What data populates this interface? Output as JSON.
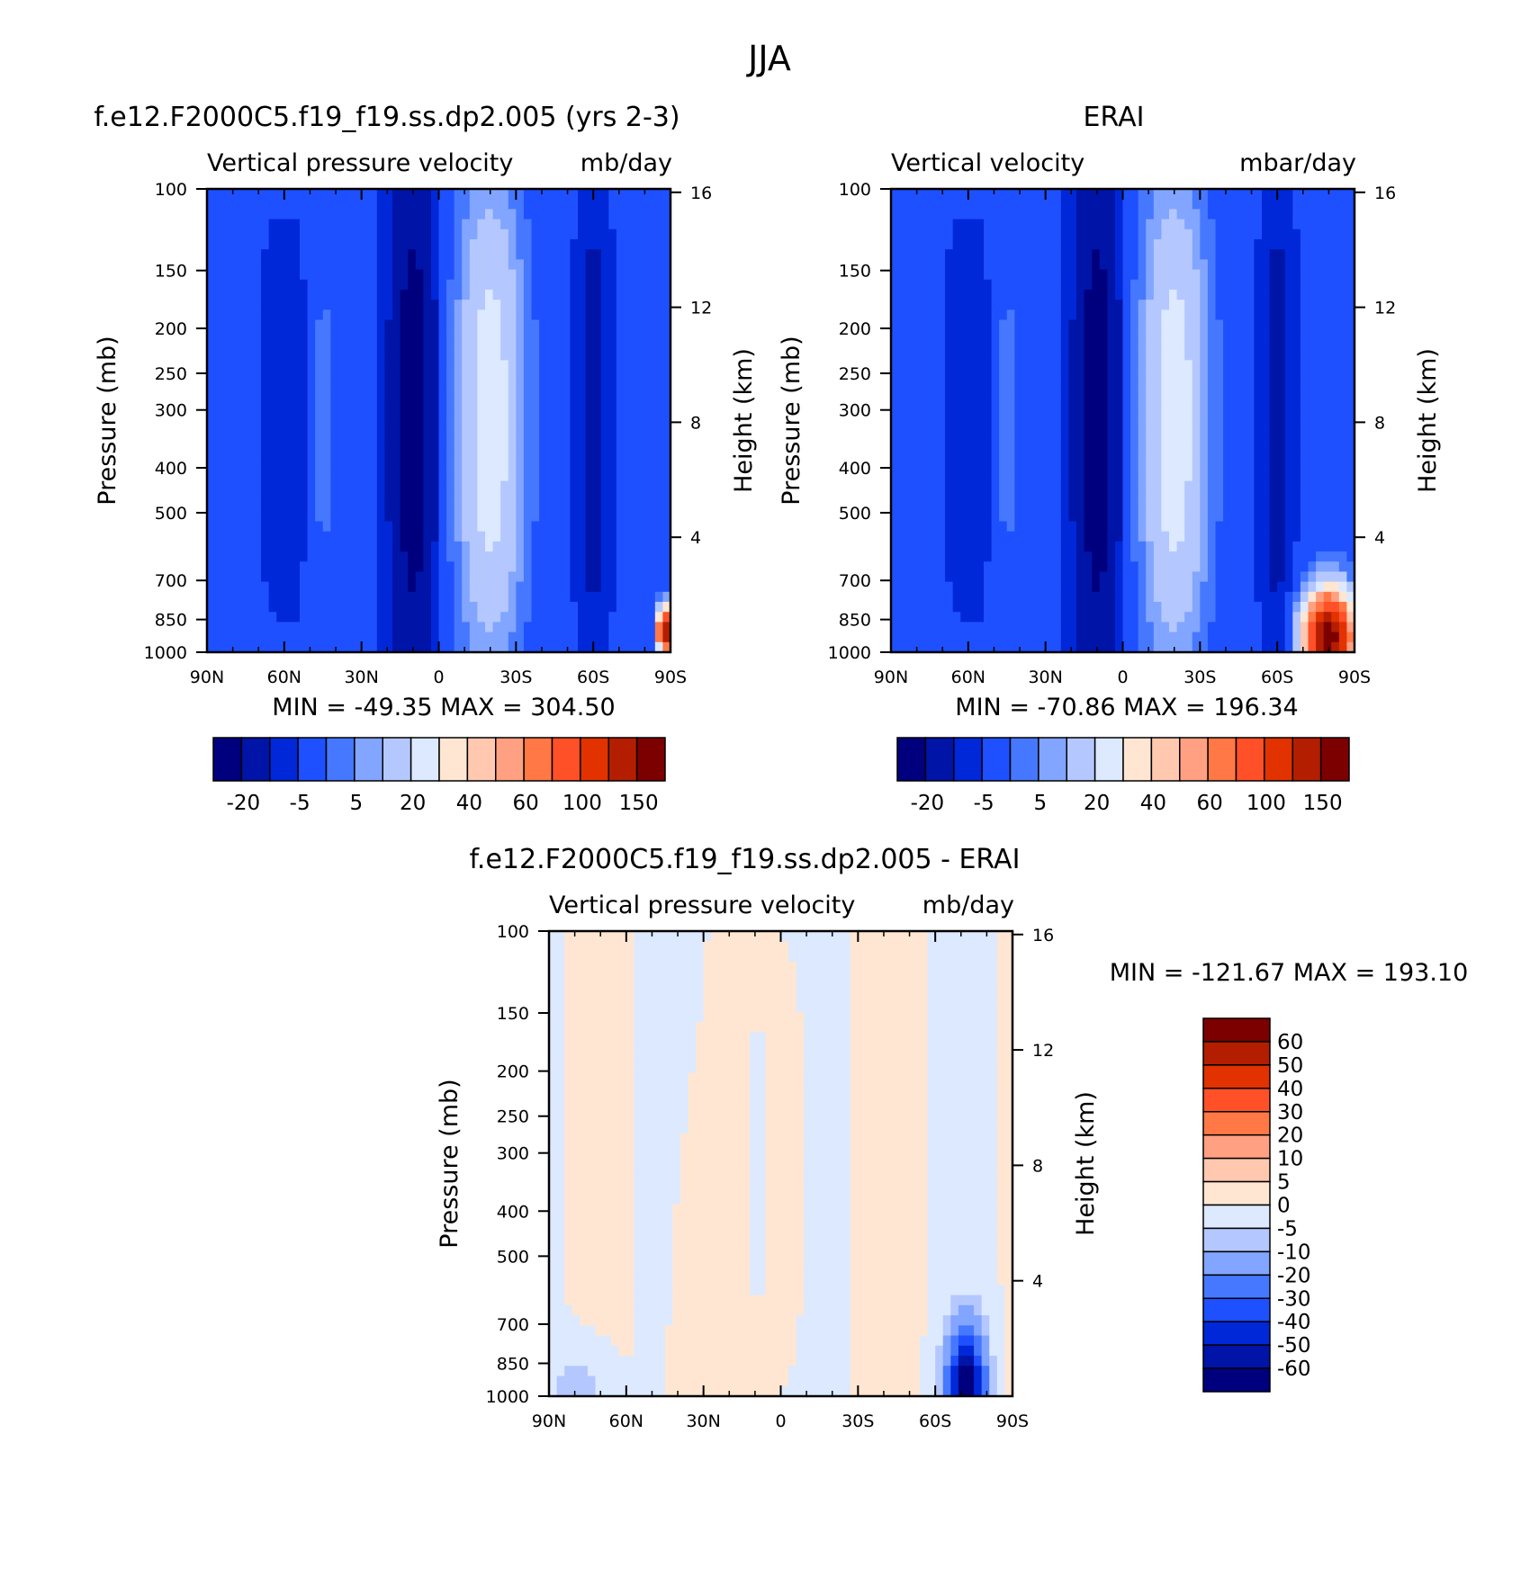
{
  "main_title": "JJA",
  "chart_data": [
    {
      "type": "heatmap",
      "id": "model",
      "title": "f.e12.F2000C5.f19_f19.ss.dp2.005 (yrs 2-3)",
      "subtitle_left": "Vertical pressure velocity",
      "subtitle_right": "mb/day",
      "ylabel": "Pressure (mb)",
      "y2label": "Height (km)",
      "min_max": "MIN = -49.35   MAX = 304.50",
      "x_ticks": [
        "90N",
        "60N",
        "30N",
        "0",
        "30S",
        "60S",
        "90S"
      ],
      "y_ticks": [
        100,
        150,
        200,
        250,
        300,
        400,
        500,
        700,
        850,
        1000
      ],
      "y2_ticks": [
        16,
        12,
        8,
        4
      ],
      "colorbar_labels": [
        "-20",
        "-5",
        "5",
        "20",
        "40",
        "60",
        "100",
        "150"
      ],
      "colorbar_colors": [
        "#00007f",
        "#0014a8",
        "#0028d8",
        "#1e50ff",
        "#4678ff",
        "#82a5ff",
        "#b4c8ff",
        "#dce9ff",
        "#ffe6d2",
        "#ffc8af",
        "#ffa082",
        "#ff7846",
        "#ff5028",
        "#e13200",
        "#b41e00",
        "#7d0000"
      ]
    },
    {
      "type": "heatmap",
      "id": "obs",
      "title": "ERAI",
      "subtitle_left": "Vertical velocity",
      "subtitle_right": "mbar/day",
      "ylabel": "Pressure (mb)",
      "y2label": "Height (km)",
      "min_max": "MIN = -70.86   MAX = 196.34",
      "x_ticks": [
        "90N",
        "60N",
        "30N",
        "0",
        "30S",
        "60S",
        "90S"
      ],
      "y_ticks": [
        100,
        150,
        200,
        250,
        300,
        400,
        500,
        700,
        850,
        1000
      ],
      "y2_ticks": [
        16,
        12,
        8,
        4
      ],
      "colorbar_labels": [
        "-20",
        "-5",
        "5",
        "20",
        "40",
        "60",
        "100",
        "150"
      ],
      "colorbar_colors": [
        "#00007f",
        "#0014a8",
        "#0028d8",
        "#1e50ff",
        "#4678ff",
        "#82a5ff",
        "#b4c8ff",
        "#dce9ff",
        "#ffe6d2",
        "#ffc8af",
        "#ffa082",
        "#ff7846",
        "#ff5028",
        "#e13200",
        "#b41e00",
        "#7d0000"
      ]
    },
    {
      "type": "heatmap",
      "id": "diff",
      "title": "f.e12.F2000C5.f19_f19.ss.dp2.005 - ERAI",
      "subtitle_left": "Vertical pressure velocity",
      "subtitle_right": "mb/day",
      "ylabel": "Pressure (mb)",
      "y2label": "Height (km)",
      "min_max": "MIN = -121.67   MAX = 193.10",
      "x_ticks": [
        "90N",
        "60N",
        "30N",
        "0",
        "30S",
        "60S",
        "90S"
      ],
      "y_ticks": [
        100,
        150,
        200,
        250,
        300,
        400,
        500,
        700,
        850,
        1000
      ],
      "y2_ticks": [
        16,
        12,
        8,
        4
      ],
      "colorbar_labels": [
        "60",
        "50",
        "40",
        "30",
        "20",
        "10",
        "5",
        "0",
        "-5",
        "-10",
        "-20",
        "-30",
        "-40",
        "-50",
        "-60"
      ],
      "colorbar_colors": [
        "#7d0000",
        "#b41e00",
        "#e13200",
        "#ff5028",
        "#ff7846",
        "#ffa082",
        "#ffc8af",
        "#ffe6d2",
        "#dce9ff",
        "#b4c8ff",
        "#82a5ff",
        "#4678ff",
        "#1e50ff",
        "#0028d8",
        "#0014a8",
        "#00007f"
      ]
    }
  ]
}
